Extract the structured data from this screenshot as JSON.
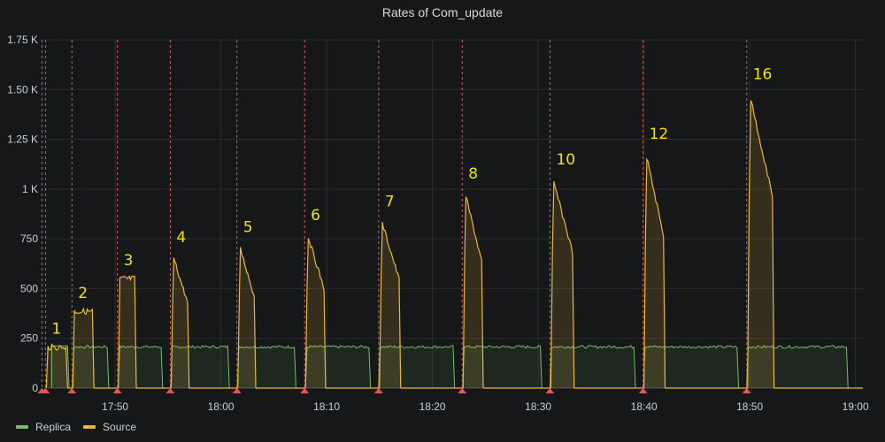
{
  "panel": {
    "title": "Rates of Com_update"
  },
  "legend": [
    {
      "label": "Replica",
      "color": "#73bf69"
    },
    {
      "label": "Source",
      "color": "#eab839"
    }
  ],
  "colors": {
    "background": "#161719",
    "grid": "#2c2d30",
    "annotation": "#e05858",
    "label_text": "#f2e600"
  },
  "chart_data": {
    "type": "area",
    "title": "Rates of Com_update",
    "xlabel": "",
    "ylabel": "",
    "y_ticks": [
      "0",
      "250",
      "500",
      "750",
      "1 K",
      "1.25 K",
      "1.50 K",
      "1.75 K"
    ],
    "ylim": [
      0,
      1750
    ],
    "x_ticks": [
      "17:50",
      "18:00",
      "18:10",
      "18:20",
      "18:30",
      "18:40",
      "18:50",
      "19:00"
    ],
    "grid": true,
    "legend_position": "bottom-left",
    "annotations_thread_labels": [
      "1",
      "2",
      "3",
      "4",
      "5",
      "6",
      "7",
      "8",
      "10",
      "12",
      "16"
    ],
    "bursts": [
      {
        "label": "1",
        "start": "17:43.5",
        "end": "17:45.5",
        "source_peak": 220,
        "replica": 210
      },
      {
        "label": "2",
        "start": "17:46.0",
        "end": "17:48.0",
        "source_peak": 400,
        "replica": 200
      },
      {
        "label": "3",
        "start": "17:50.3",
        "end": "17:52.0",
        "source_peak": 565,
        "replica": 205
      },
      {
        "label": "4",
        "start": "17:55.3",
        "end": "17:57.0",
        "source_peak": 680,
        "replica": 200
      },
      {
        "label": "5",
        "start": "18:01.6",
        "end": "18:03.3",
        "source_peak": 730,
        "replica": 205
      },
      {
        "label": "6",
        "start": "18:08.0",
        "end": "18:09.9",
        "source_peak": 790,
        "replica": 205
      },
      {
        "label": "7",
        "start": "18:15.0",
        "end": "18:17.0",
        "source_peak": 860,
        "replica": 200
      },
      {
        "label": "8",
        "start": "18:22.9",
        "end": "18:24.8",
        "source_peak": 1000,
        "replica": 205
      },
      {
        "label": "10",
        "start": "18:31.2",
        "end": "18:33.4",
        "source_peak": 1070,
        "replica": 205
      },
      {
        "label": "12",
        "start": "18:40.0",
        "end": "18:42.0",
        "source_peak": 1200,
        "replica": 210
      },
      {
        "label": "16",
        "start": "18:49.8",
        "end": "18:52.3",
        "source_peak": 1500,
        "replica": 205
      }
    ],
    "series": [
      {
        "name": "Replica",
        "description": "steady ~200-215 between 17:44 and 18:59, dropping to 0 briefly before each burst"
      },
      {
        "name": "Source",
        "description": "bursts with decaying peaks; 0 between bursts"
      }
    ]
  }
}
